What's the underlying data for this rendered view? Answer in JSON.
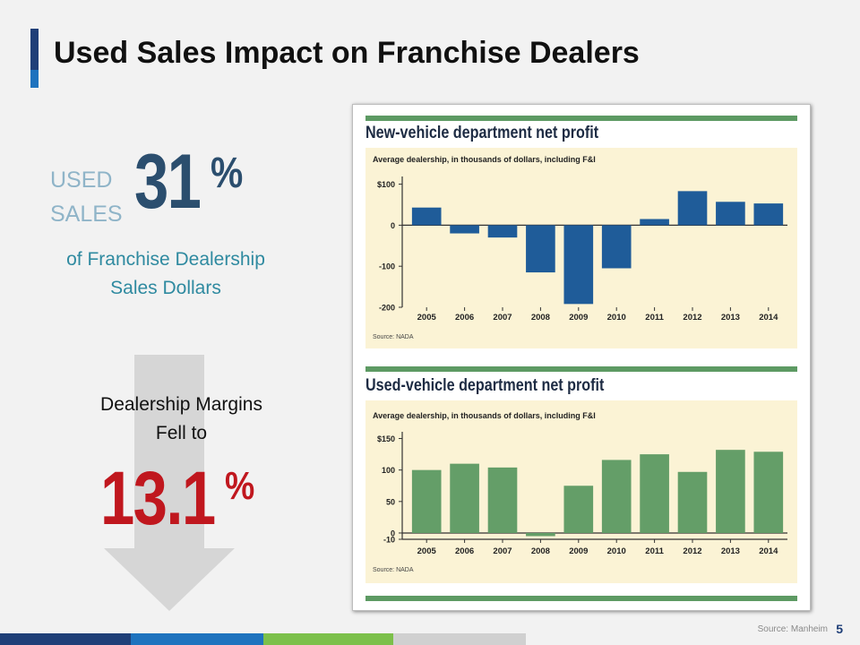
{
  "slide": {
    "title": "Used Sales Impact on Franchise Dealers",
    "used_label_line1": "USED",
    "used_label_line2": "SALES",
    "used_value": "31",
    "percent_sign": "%",
    "franchise_line1": "of Franchise Dealership",
    "franchise_line2": "Sales Dollars",
    "margins_line1": "Dealership Margins",
    "margins_line2": "Fell to",
    "margin_value": "13.1",
    "source": "Source: Manheim",
    "page_number": "5"
  },
  "colors": {
    "title_accent_dark": "#1f3f78",
    "title_accent_light": "#1e73be",
    "new_vehicle_bars": "#1f5c99",
    "used_vehicle_bars": "#649e68",
    "chart_panel_bg": "#fbf3d5",
    "chart_rule_green": "#5d9a63",
    "red_highlight": "#c0171e",
    "footer_segments": [
      "#1f3f78",
      "#1e73be",
      "#7cc04a",
      "#d0d0d0"
    ]
  },
  "chart_data": [
    {
      "type": "bar",
      "title": "New-vehicle department net profit",
      "subtitle": "Average dealership, in thousands of dollars, including F&I",
      "source": "Source: NADA",
      "categories": [
        "2005",
        "2006",
        "2007",
        "2008",
        "2009",
        "2010",
        "2011",
        "2012",
        "2013",
        "2014"
      ],
      "values": [
        43,
        -20,
        -30,
        -115,
        -192,
        -105,
        15,
        83,
        57,
        53
      ],
      "yticks": [
        "$100",
        "0",
        "-100",
        "-200"
      ],
      "ytick_values": [
        100,
        0,
        -100,
        -200
      ],
      "ylim": [
        -200,
        110
      ],
      "grid": false
    },
    {
      "type": "bar",
      "title": "Used-vehicle department net profit",
      "subtitle": "Average dealership, in thousands of dollars, including F&I",
      "source": "Source: NADA",
      "categories": [
        "2005",
        "2006",
        "2007",
        "2008",
        "2009",
        "2010",
        "2011",
        "2012",
        "2013",
        "2014"
      ],
      "values": [
        100,
        110,
        104,
        -5,
        75,
        116,
        125,
        97,
        132,
        129
      ],
      "yticks": [
        "$150",
        "100",
        "50",
        "0",
        "-10"
      ],
      "ytick_values": [
        150,
        100,
        50,
        0,
        -10
      ],
      "ylim": [
        -10,
        155
      ],
      "grid": false
    }
  ]
}
